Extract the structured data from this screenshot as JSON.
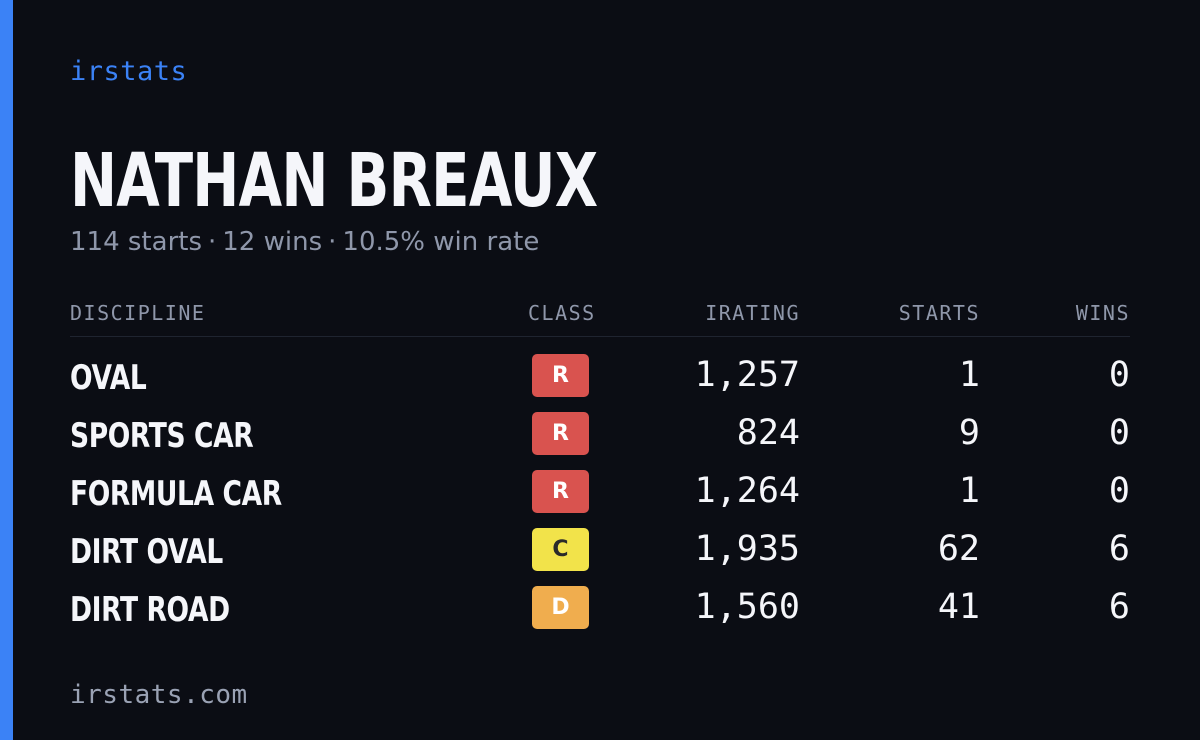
{
  "brand": "irstats",
  "player": {
    "name": "NATHAN BREAUX",
    "starts_text": "114 starts",
    "wins_text": "12 wins",
    "win_rate_text": "10.5% win rate",
    "separator": "·"
  },
  "table": {
    "headers": {
      "discipline": "DISCIPLINE",
      "class": "CLASS",
      "irating": "IRATING",
      "starts": "STARTS",
      "wins": "WINS"
    },
    "rows": [
      {
        "discipline": "OVAL",
        "class": "R",
        "class_color": "#d9534f",
        "class_text_color": "#ffffff",
        "irating": "1,257",
        "starts": "1",
        "wins": "0"
      },
      {
        "discipline": "SPORTS CAR",
        "class": "R",
        "class_color": "#d9534f",
        "class_text_color": "#ffffff",
        "irating": "824",
        "starts": "9",
        "wins": "0"
      },
      {
        "discipline": "FORMULA CAR",
        "class": "R",
        "class_color": "#d9534f",
        "class_text_color": "#ffffff",
        "irating": "1,264",
        "starts": "1",
        "wins": "0"
      },
      {
        "discipline": "DIRT OVAL",
        "class": "C",
        "class_color": "#f2e34a",
        "class_text_color": "#2a2a2a",
        "irating": "1,935",
        "starts": "62",
        "wins": "6"
      },
      {
        "discipline": "DIRT ROAD",
        "class": "D",
        "class_color": "#f0ad4e",
        "class_text_color": "#ffffff",
        "irating": "1,560",
        "starts": "41",
        "wins": "6"
      }
    ]
  },
  "footer": {
    "url": "irstats.com"
  },
  "colors": {
    "background": "#0b0d14",
    "accent": "#3b82f6",
    "text_primary": "#f5f6fa",
    "text_muted": "#8f97aa"
  }
}
